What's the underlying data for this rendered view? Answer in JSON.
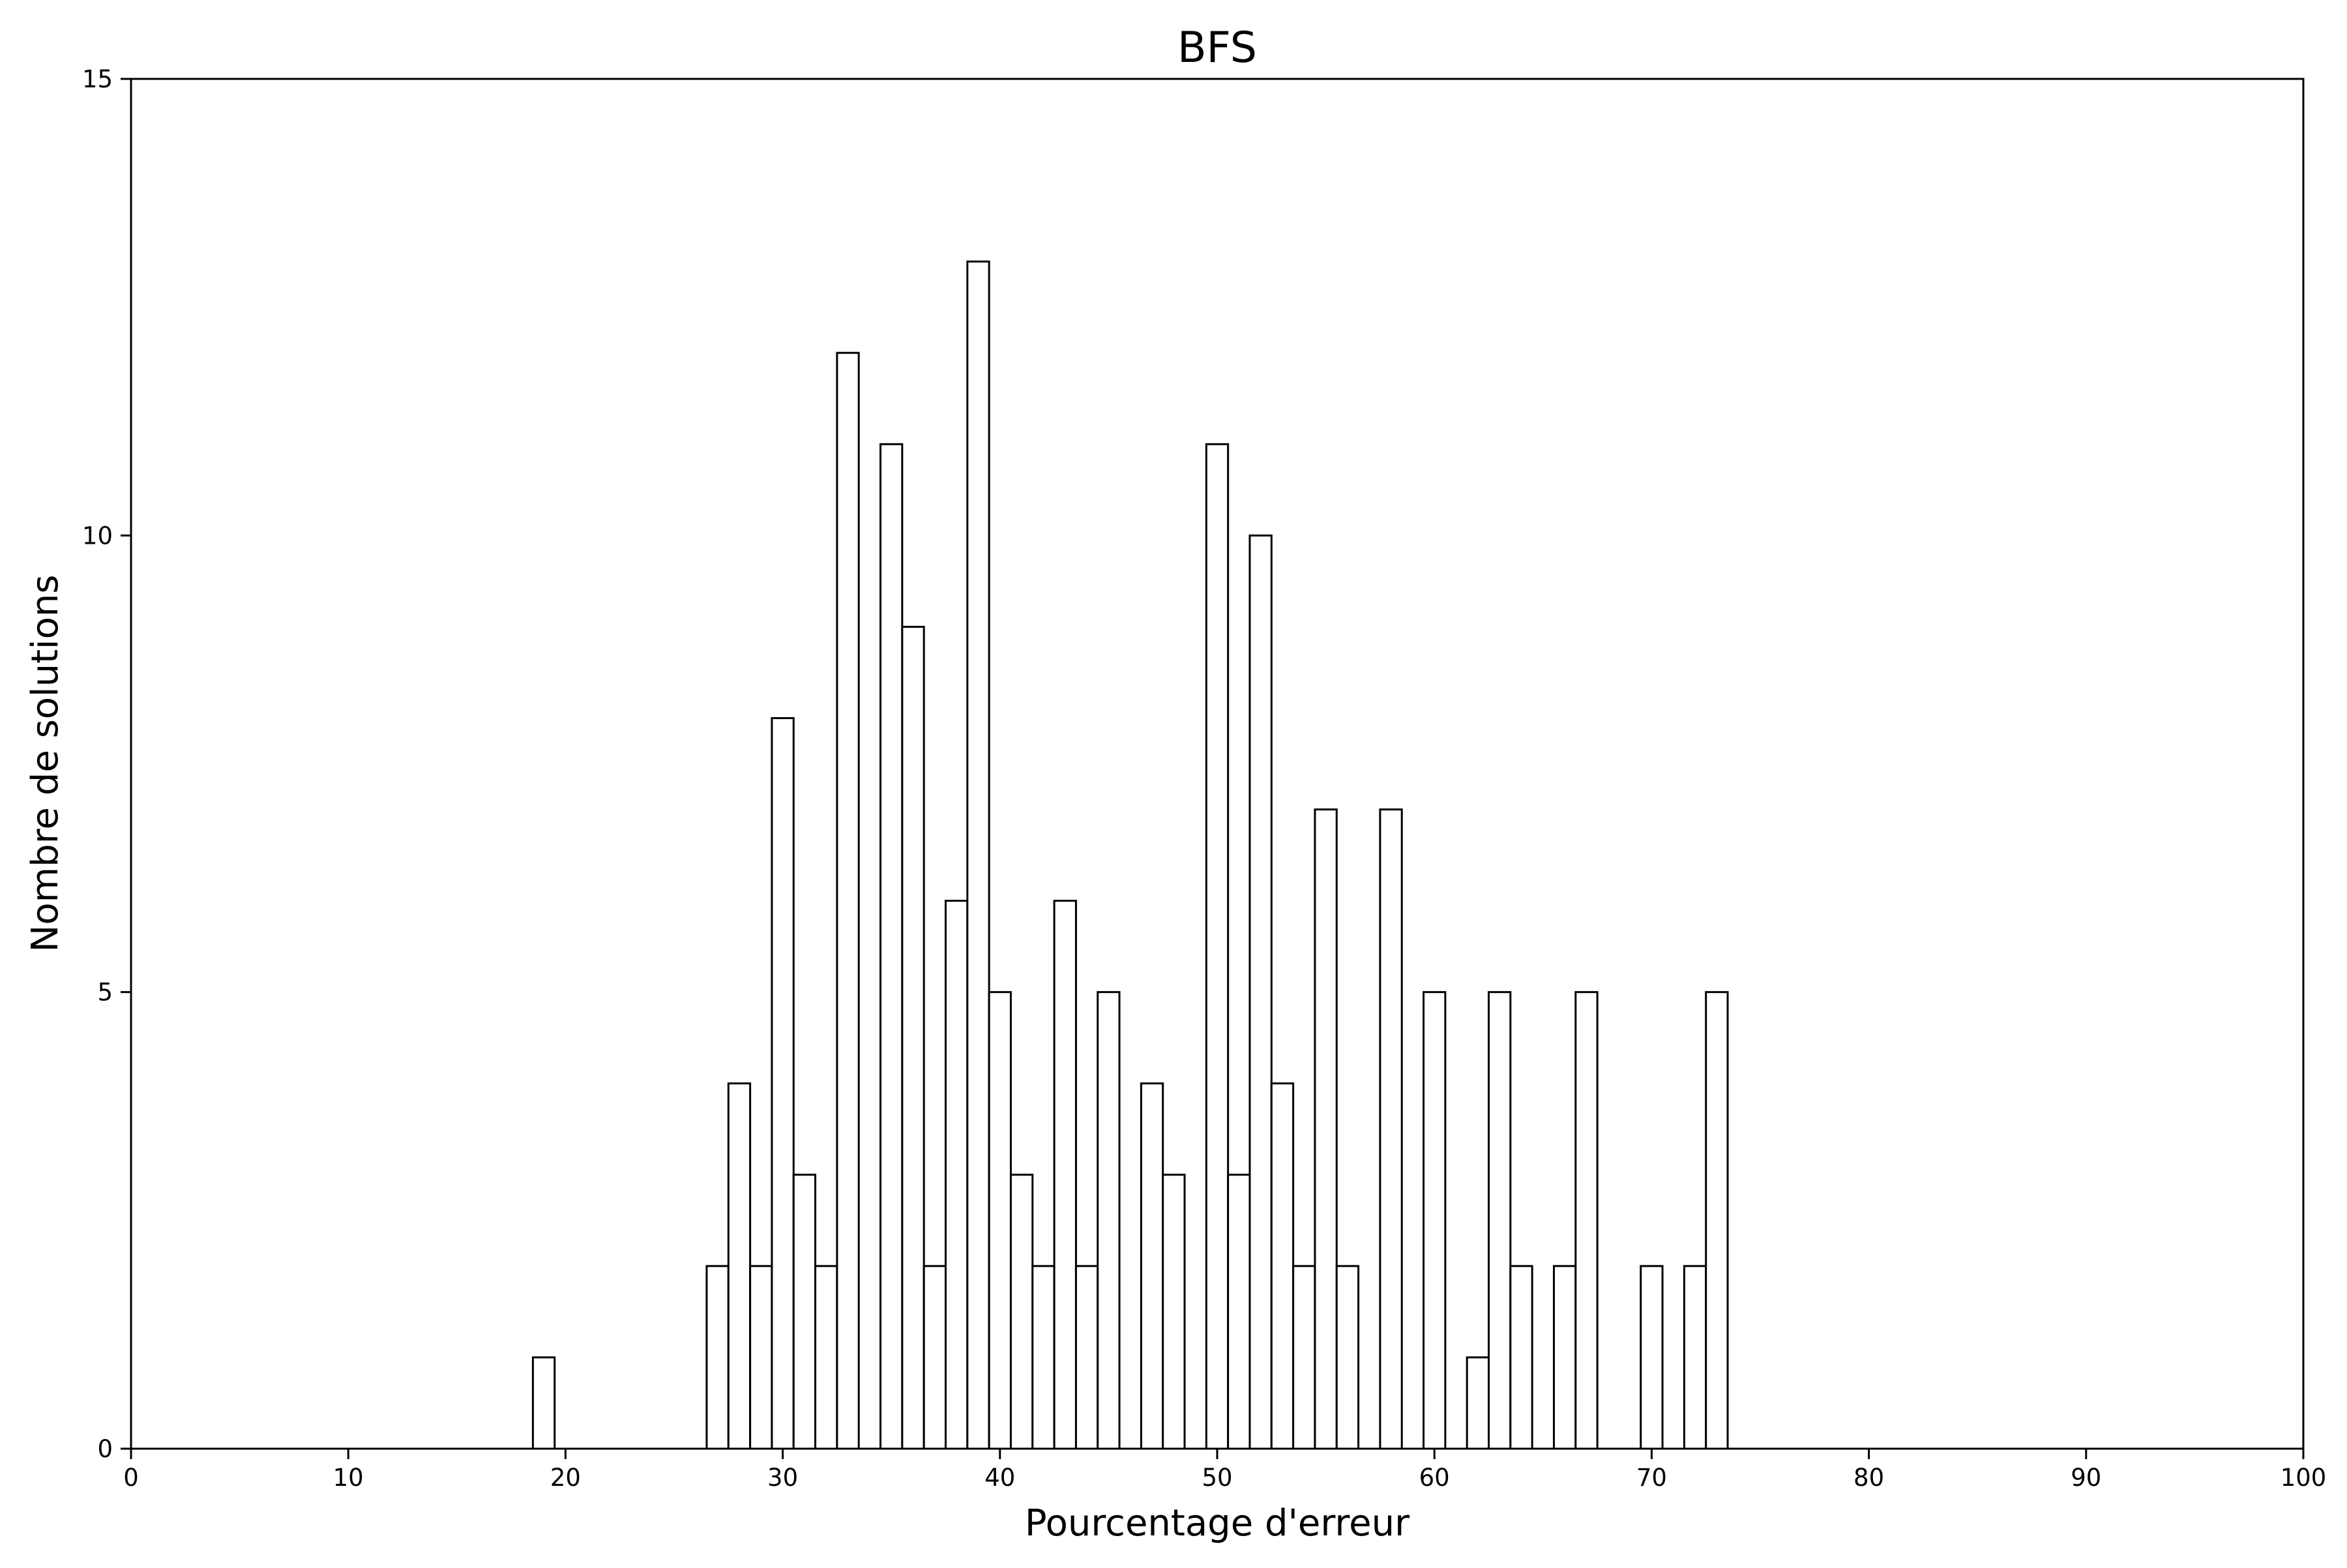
{
  "chart_data": {
    "type": "bar",
    "title": "BFS",
    "xlabel": "Pourcentage d'erreur",
    "ylabel": "Nombre de solutions",
    "xlim": [
      0,
      100
    ],
    "ylim": [
      0,
      15
    ],
    "xticks": [
      "0",
      "10",
      "20",
      "30",
      "40",
      "50",
      "60",
      "70",
      "80",
      "90",
      "100"
    ],
    "yticks": [
      "0",
      "5",
      "10",
      "15"
    ],
    "grid": false,
    "bar_width": 1,
    "bar_fill": "#ffffff",
    "bar_stroke": "#000000",
    "bars": [
      {
        "x": 19,
        "value": 1
      },
      {
        "x": 27,
        "value": 2
      },
      {
        "x": 28,
        "value": 4
      },
      {
        "x": 29,
        "value": 2
      },
      {
        "x": 30,
        "value": 8
      },
      {
        "x": 31,
        "value": 3
      },
      {
        "x": 32,
        "value": 2
      },
      {
        "x": 33,
        "value": 12
      },
      {
        "x": 35,
        "value": 11
      },
      {
        "x": 36,
        "value": 9
      },
      {
        "x": 37,
        "value": 2
      },
      {
        "x": 38,
        "value": 6
      },
      {
        "x": 39,
        "value": 13
      },
      {
        "x": 40,
        "value": 5
      },
      {
        "x": 41,
        "value": 3
      },
      {
        "x": 42,
        "value": 2
      },
      {
        "x": 43,
        "value": 6
      },
      {
        "x": 44,
        "value": 2
      },
      {
        "x": 45,
        "value": 5
      },
      {
        "x": 47,
        "value": 4
      },
      {
        "x": 48,
        "value": 3
      },
      {
        "x": 50,
        "value": 11
      },
      {
        "x": 51,
        "value": 3
      },
      {
        "x": 52,
        "value": 10
      },
      {
        "x": 53,
        "value": 4
      },
      {
        "x": 54,
        "value": 2
      },
      {
        "x": 55,
        "value": 7
      },
      {
        "x": 56,
        "value": 2
      },
      {
        "x": 58,
        "value": 7
      },
      {
        "x": 60,
        "value": 5
      },
      {
        "x": 62,
        "value": 1
      },
      {
        "x": 63,
        "value": 5
      },
      {
        "x": 64,
        "value": 2
      },
      {
        "x": 66,
        "value": 2
      },
      {
        "x": 67,
        "value": 5
      },
      {
        "x": 70,
        "value": 2
      },
      {
        "x": 72,
        "value": 2
      },
      {
        "x": 73,
        "value": 5
      }
    ]
  }
}
